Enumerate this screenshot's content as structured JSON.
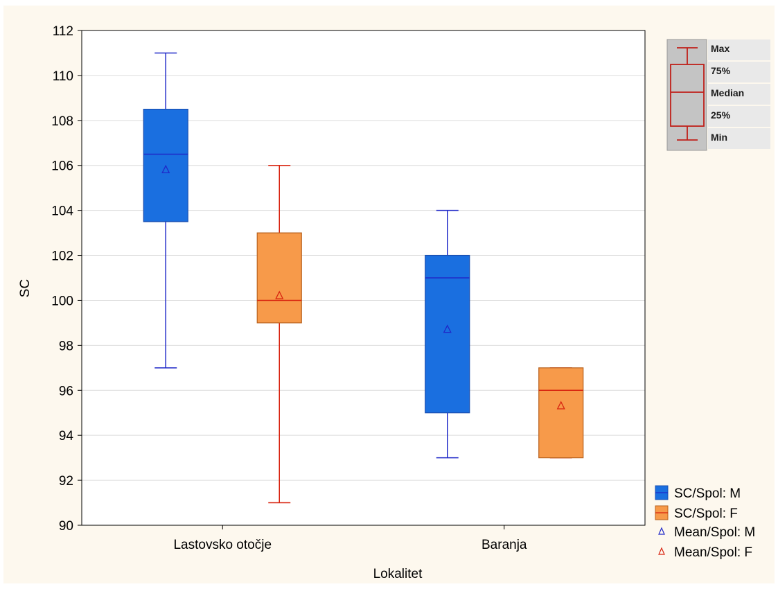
{
  "chart_data": {
    "type": "boxplot",
    "xlabel": "Lokalitet",
    "ylabel": "SC",
    "categories": [
      "Lastovsko otočje",
      "Baranja"
    ],
    "ylim": [
      90,
      112
    ],
    "yticks": [
      90,
      92,
      94,
      96,
      98,
      100,
      102,
      104,
      106,
      108,
      110,
      112
    ],
    "grid": true,
    "series": [
      {
        "name": "SC/Spol: M",
        "color": "#1a6fe0",
        "line_color": "#1f28c8",
        "boxes": [
          {
            "min": 97,
            "q1": 103.5,
            "median": 106.5,
            "q3": 108.5,
            "max": 111,
            "mean": 105.8
          },
          {
            "min": 93,
            "q1": 95,
            "median": 101,
            "q3": 102,
            "max": 104,
            "mean": 98.7
          }
        ]
      },
      {
        "name": "SC/Spol: F",
        "color": "#f79a4a",
        "line_color": "#d8230f",
        "boxes": [
          {
            "min": 91,
            "q1": 99,
            "median": 100,
            "q3": 103,
            "max": 106,
            "mean": 100.2
          },
          {
            "min": 93,
            "q1": 93,
            "median": 96,
            "q3": 97,
            "max": 97,
            "mean": 95.3
          }
        ]
      }
    ],
    "legend": {
      "placement": "bottom-right",
      "entries": [
        "SC/Spol: M",
        "SC/Spol: F",
        "Mean/Spol: M",
        "Mean/Spol: F"
      ]
    },
    "key_legend": {
      "placement": "top-right",
      "labels": [
        "Max",
        "75%",
        "Median",
        "25%",
        "Min"
      ]
    }
  }
}
